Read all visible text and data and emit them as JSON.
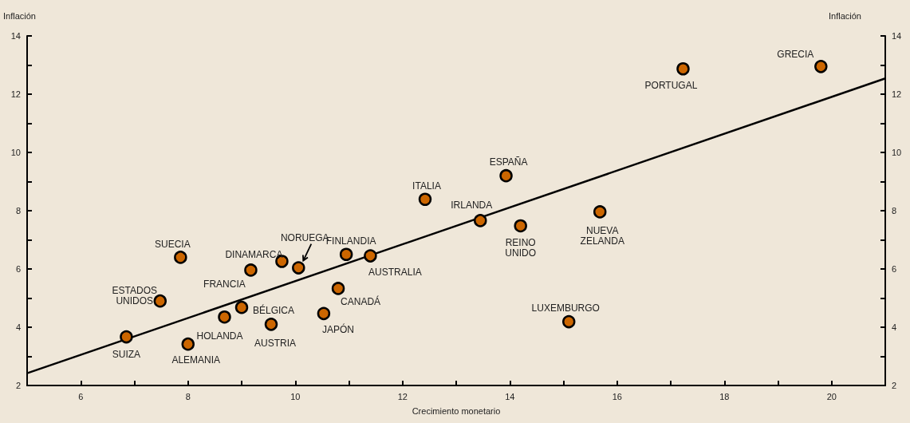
{
  "chart_data": {
    "type": "scatter",
    "xlabel": "Crecimiento monetario",
    "ylabel": "Inflación",
    "y2label": "Inflación",
    "xlim": [
      5,
      21
    ],
    "xticks": [
      6,
      8,
      10,
      12,
      14,
      16,
      18,
      20,
      {
        "value": 7,
        "label": null
      },
      {
        "value": 9,
        "label": null
      },
      {
        "value": 11,
        "label": null
      },
      {
        "value": 13,
        "label": null
      },
      {
        "value": 15,
        "label": null
      },
      {
        "value": 17,
        "label": null
      },
      {
        "value": 19,
        "label": null
      }
    ],
    "ylim": [
      2,
      14
    ],
    "yticks": [
      2,
      4,
      6,
      8,
      10,
      12,
      14,
      {
        "value": 3,
        "label": null
      },
      {
        "value": 5,
        "label": null
      },
      {
        "value": 7,
        "label": null
      },
      {
        "value": 9,
        "label": null
      },
      {
        "value": 11,
        "label": null
      },
      {
        "value": 13,
        "label": null
      }
    ],
    "y2lim": [
      2,
      14
    ],
    "y2ticks": [
      2,
      4,
      6,
      8,
      10,
      12,
      14,
      {
        "value": 3,
        "label": null
      },
      {
        "value": 5,
        "label": null
      },
      {
        "value": 7,
        "label": null
      },
      {
        "value": 9,
        "label": null
      },
      {
        "value": 11,
        "label": null
      },
      {
        "value": 13,
        "label": null
      }
    ],
    "grid": false,
    "marker": "circle",
    "series": [
      {
        "color": "#cc6600",
        "x": [
          6.85,
          8.0,
          7.48,
          7.86,
          8.68,
          9.0,
          9.17,
          9.75,
          10.06,
          9.55,
          10.95,
          11.4,
          10.8,
          10.53,
          12.42,
          13.45,
          13.93,
          14.2,
          15.68,
          15.1,
          17.23,
          19.8
        ],
        "values": [
          3.67,
          3.42,
          4.9,
          6.4,
          4.35,
          4.68,
          5.96,
          6.26,
          6.04,
          4.1,
          6.5,
          6.45,
          5.33,
          4.47,
          8.39,
          7.66,
          9.2,
          7.48,
          7.96,
          4.19,
          12.87,
          12.95
        ]
      },
      {
        "type": "line",
        "color": "#000000",
        "line_style": "solid",
        "marker": "none",
        "x": [
          5,
          21
        ],
        "values": [
          2.42,
          12.54
        ]
      }
    ],
    "annotations": [
      {
        "text": "SUIZA",
        "x": 6.85,
        "y": 3.67
      },
      {
        "text": "ALEMANIA",
        "x": 8.0,
        "y": 3.42
      },
      {
        "text": "ESTADOS UNIDOS",
        "x": 7.48,
        "y": 4.9
      },
      {
        "text": "SUECIA",
        "x": 7.86,
        "y": 6.4
      },
      {
        "text": "HOLANDA",
        "x": 8.68,
        "y": 4.35
      },
      {
        "text": "BÉLGICA",
        "x": 9.0,
        "y": 4.68
      },
      {
        "text": "FRANCIA",
        "x": 9.17,
        "y": 5.96
      },
      {
        "text": "DINAMARCA",
        "x": 9.75,
        "y": 6.26
      },
      {
        "text": "NORUEGA",
        "x": 10.06,
        "y": 6.04
      },
      {
        "text": "AUSTRIA",
        "x": 9.55,
        "y": 4.1
      },
      {
        "text": "FINLANDIA",
        "x": 10.95,
        "y": 6.5
      },
      {
        "text": "AUSTRALIA",
        "x": 11.4,
        "y": 6.45
      },
      {
        "text": "CANADÁ",
        "x": 10.8,
        "y": 5.33
      },
      {
        "text": "JAPÓN",
        "x": 10.53,
        "y": 4.47
      },
      {
        "text": "ITALIA",
        "x": 12.42,
        "y": 8.39
      },
      {
        "text": "IRLANDA",
        "x": 13.45,
        "y": 7.66
      },
      {
        "text": "ESPAÑA",
        "x": 13.93,
        "y": 9.2
      },
      {
        "text": "REINO UNIDO",
        "x": 14.2,
        "y": 7.48
      },
      {
        "text": "NUEVA ZELANDA",
        "x": 15.68,
        "y": 7.96
      },
      {
        "text": "LUXEMBURGO",
        "x": 15.1,
        "y": 4.19
      },
      {
        "text": "PORTUGAL",
        "x": 17.23,
        "y": 12.87
      },
      {
        "text": "GRECIA",
        "x": 19.8,
        "y": 12.95
      }
    ]
  }
}
